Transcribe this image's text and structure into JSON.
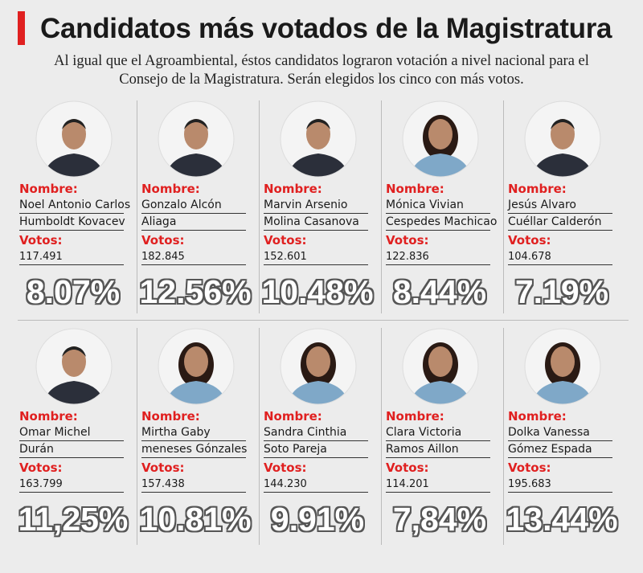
{
  "header": {
    "title": "Candidatos más votados de la Magistratura",
    "subtitle": [
      "Al igual que el Agroambiental, éstos candidatos lograron votación a nivel nacional para el",
      "Consejo de la Magistratura. Serán elegidos los cinco con más votos."
    ]
  },
  "labels": {
    "name": "Nombre:",
    "votes": "Votos:"
  },
  "candidates": [
    {
      "name": [
        "Noel Antonio Carlos",
        "Humboldt Kovacev"
      ],
      "votes": "117.491",
      "percent": "8.07%"
    },
    {
      "name": [
        "Gonzalo Alcón",
        "Aliaga"
      ],
      "votes": "182.845",
      "percent": "12.56%"
    },
    {
      "name": [
        "Marvin Arsenio",
        "Molina Casanova"
      ],
      "votes": "152.601",
      "percent": "10.48%"
    },
    {
      "name": [
        "Mónica Vivian",
        "Cespedes Machicao"
      ],
      "votes": "122.836",
      "percent": "8.44%"
    },
    {
      "name": [
        "Jesús Alvaro",
        "Cuéllar Calderón"
      ],
      "votes": "104.678",
      "percent": "7.19%"
    },
    {
      "name": [
        "Omar Michel",
        "Durán"
      ],
      "votes": "163.799",
      "percent": "11,25%"
    },
    {
      "name": [
        "Mirtha Gaby",
        "meneses Gónzales"
      ],
      "votes": "157.438",
      "percent": "10.81%"
    },
    {
      "name": [
        "Sandra Cinthia",
        "Soto Pareja"
      ],
      "votes": "144.230",
      "percent": "9.91%"
    },
    {
      "name": [
        "Clara Victoria",
        "Ramos Aillon"
      ],
      "votes": "114.201",
      "percent": "7,84%"
    },
    {
      "name": [
        "Dolka Vanessa",
        "Gómez Espada"
      ],
      "votes": "195.683",
      "percent": "13.44%"
    }
  ]
}
